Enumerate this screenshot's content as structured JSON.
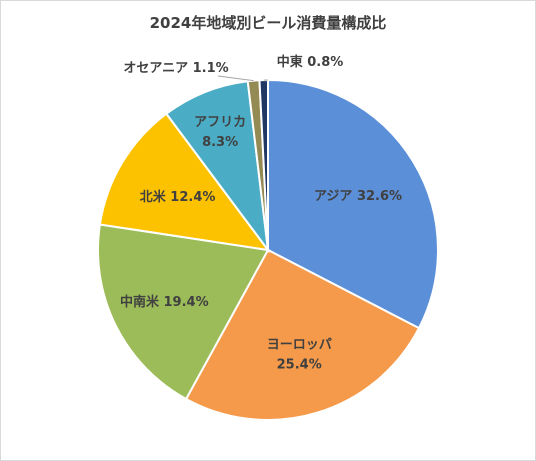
{
  "chart_data": {
    "type": "pie",
    "title": "2024年地域別ビール消費量構成比",
    "unit": "%",
    "start_angle_deg": 0,
    "direction": "clockwise",
    "slices": [
      {
        "label": "アジア",
        "value": 32.6,
        "display": "アジア 32.6%",
        "color": "#5b8fd8"
      },
      {
        "label": "ヨーロッパ",
        "value": 25.4,
        "display": "ヨーロッパ 25.4%",
        "color": "#f59a4b"
      },
      {
        "label": "中南米",
        "value": 19.4,
        "display": "中南米 19.4%",
        "color": "#9cbb59"
      },
      {
        "label": "北米",
        "value": 12.4,
        "display": "北米 12.4%",
        "color": "#fcc200"
      },
      {
        "label": "アフリカ",
        "value": 8.3,
        "display": "アフリカ 8.3%",
        "color": "#4bacc6"
      },
      {
        "label": "オセアニア",
        "value": 1.1,
        "display": "オセアニア 1.1%",
        "color": "#948a54"
      },
      {
        "label": "中東",
        "value": 0.8,
        "display": "中東 0.8%",
        "color": "#1f3864"
      }
    ]
  }
}
